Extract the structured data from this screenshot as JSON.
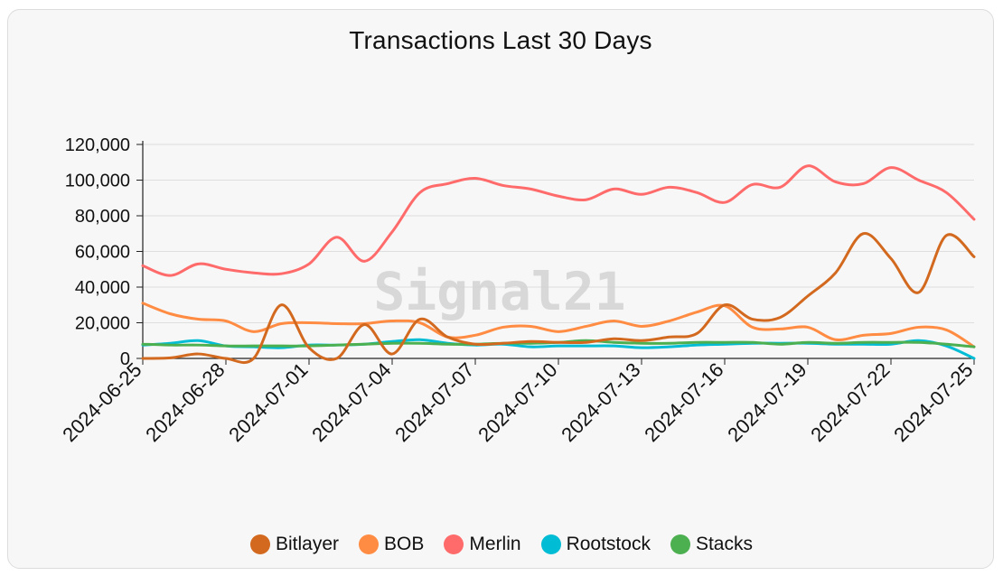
{
  "chart_data": {
    "type": "line",
    "title": "Transactions Last 30 Days",
    "watermark": "Signal21",
    "xlabel": "",
    "ylabel": "",
    "ylim": [
      0,
      120000
    ],
    "y_ticks": [
      0,
      20000,
      40000,
      60000,
      80000,
      100000,
      120000
    ],
    "y_tick_labels": [
      "0",
      "20,000",
      "40,000",
      "60,000",
      "80,000",
      "100,000",
      "120,000"
    ],
    "x": [
      "2024-06-25",
      "2024-06-26",
      "2024-06-27",
      "2024-06-28",
      "2024-06-29",
      "2024-06-30",
      "2024-07-01",
      "2024-07-02",
      "2024-07-03",
      "2024-07-04",
      "2024-07-05",
      "2024-07-06",
      "2024-07-07",
      "2024-07-08",
      "2024-07-09",
      "2024-07-10",
      "2024-07-11",
      "2024-07-12",
      "2024-07-13",
      "2024-07-14",
      "2024-07-15",
      "2024-07-16",
      "2024-07-17",
      "2024-07-18",
      "2024-07-19",
      "2024-07-20",
      "2024-07-21",
      "2024-07-22",
      "2024-07-23",
      "2024-07-24",
      "2024-07-25"
    ],
    "x_tick_labels": [
      "2024-06-25",
      "2024-06-28",
      "2024-07-01",
      "2024-07-04",
      "2024-07-07",
      "2024-07-10",
      "2024-07-13",
      "2024-07-16",
      "2024-07-19",
      "2024-07-22",
      "2024-07-25"
    ],
    "legend_position": "bottom",
    "grid": true,
    "series": [
      {
        "name": "Bitlayer",
        "color": "#d2691e",
        "values": [
          0,
          300,
          2500,
          0,
          0,
          30000,
          6000,
          0,
          19000,
          2500,
          22000,
          12000,
          8000,
          8500,
          9500,
          9000,
          9000,
          11000,
          10000,
          12000,
          14000,
          30000,
          22000,
          23000,
          35000,
          48000,
          70000,
          56000,
          37000,
          69000,
          57000
        ]
      },
      {
        "name": "BOB",
        "color": "#ff8c42",
        "values": [
          31000,
          25000,
          22000,
          21000,
          15000,
          19500,
          20000,
          19500,
          19500,
          21000,
          20000,
          12000,
          13000,
          17500,
          18000,
          15000,
          18000,
          21000,
          18000,
          21000,
          26000,
          29500,
          17500,
          16500,
          17500,
          10500,
          13000,
          14000,
          17500,
          16000,
          6500
        ]
      },
      {
        "name": "Merlin",
        "color": "#ff6b6b",
        "values": [
          52000,
          46500,
          53000,
          50000,
          48000,
          47500,
          53000,
          68000,
          54500,
          71000,
          93000,
          98000,
          101000,
          97000,
          95000,
          91000,
          89000,
          95000,
          92000,
          96000,
          93000,
          87500,
          97500,
          96000,
          108000,
          99000,
          98000,
          107000,
          100000,
          93000,
          78000
        ]
      },
      {
        "name": "Rootstock",
        "color": "#00bcd4",
        "values": [
          7500,
          8500,
          10000,
          7000,
          6500,
          6000,
          7500,
          7500,
          8000,
          9500,
          10500,
          8500,
          7500,
          8000,
          6500,
          7000,
          7000,
          7000,
          6000,
          6500,
          7500,
          8000,
          8500,
          8500,
          8500,
          8000,
          8000,
          8000,
          10000,
          7000,
          0
        ]
      },
      {
        "name": "Stacks",
        "color": "#4caf50",
        "values": [
          8000,
          7500,
          7500,
          7000,
          7000,
          7000,
          7000,
          7500,
          8000,
          8500,
          8500,
          8000,
          8000,
          8500,
          8500,
          9000,
          10000,
          9000,
          8500,
          8500,
          9000,
          9000,
          9000,
          8000,
          9000,
          8500,
          9000,
          9000,
          9000,
          8000,
          6500
        ]
      }
    ]
  }
}
